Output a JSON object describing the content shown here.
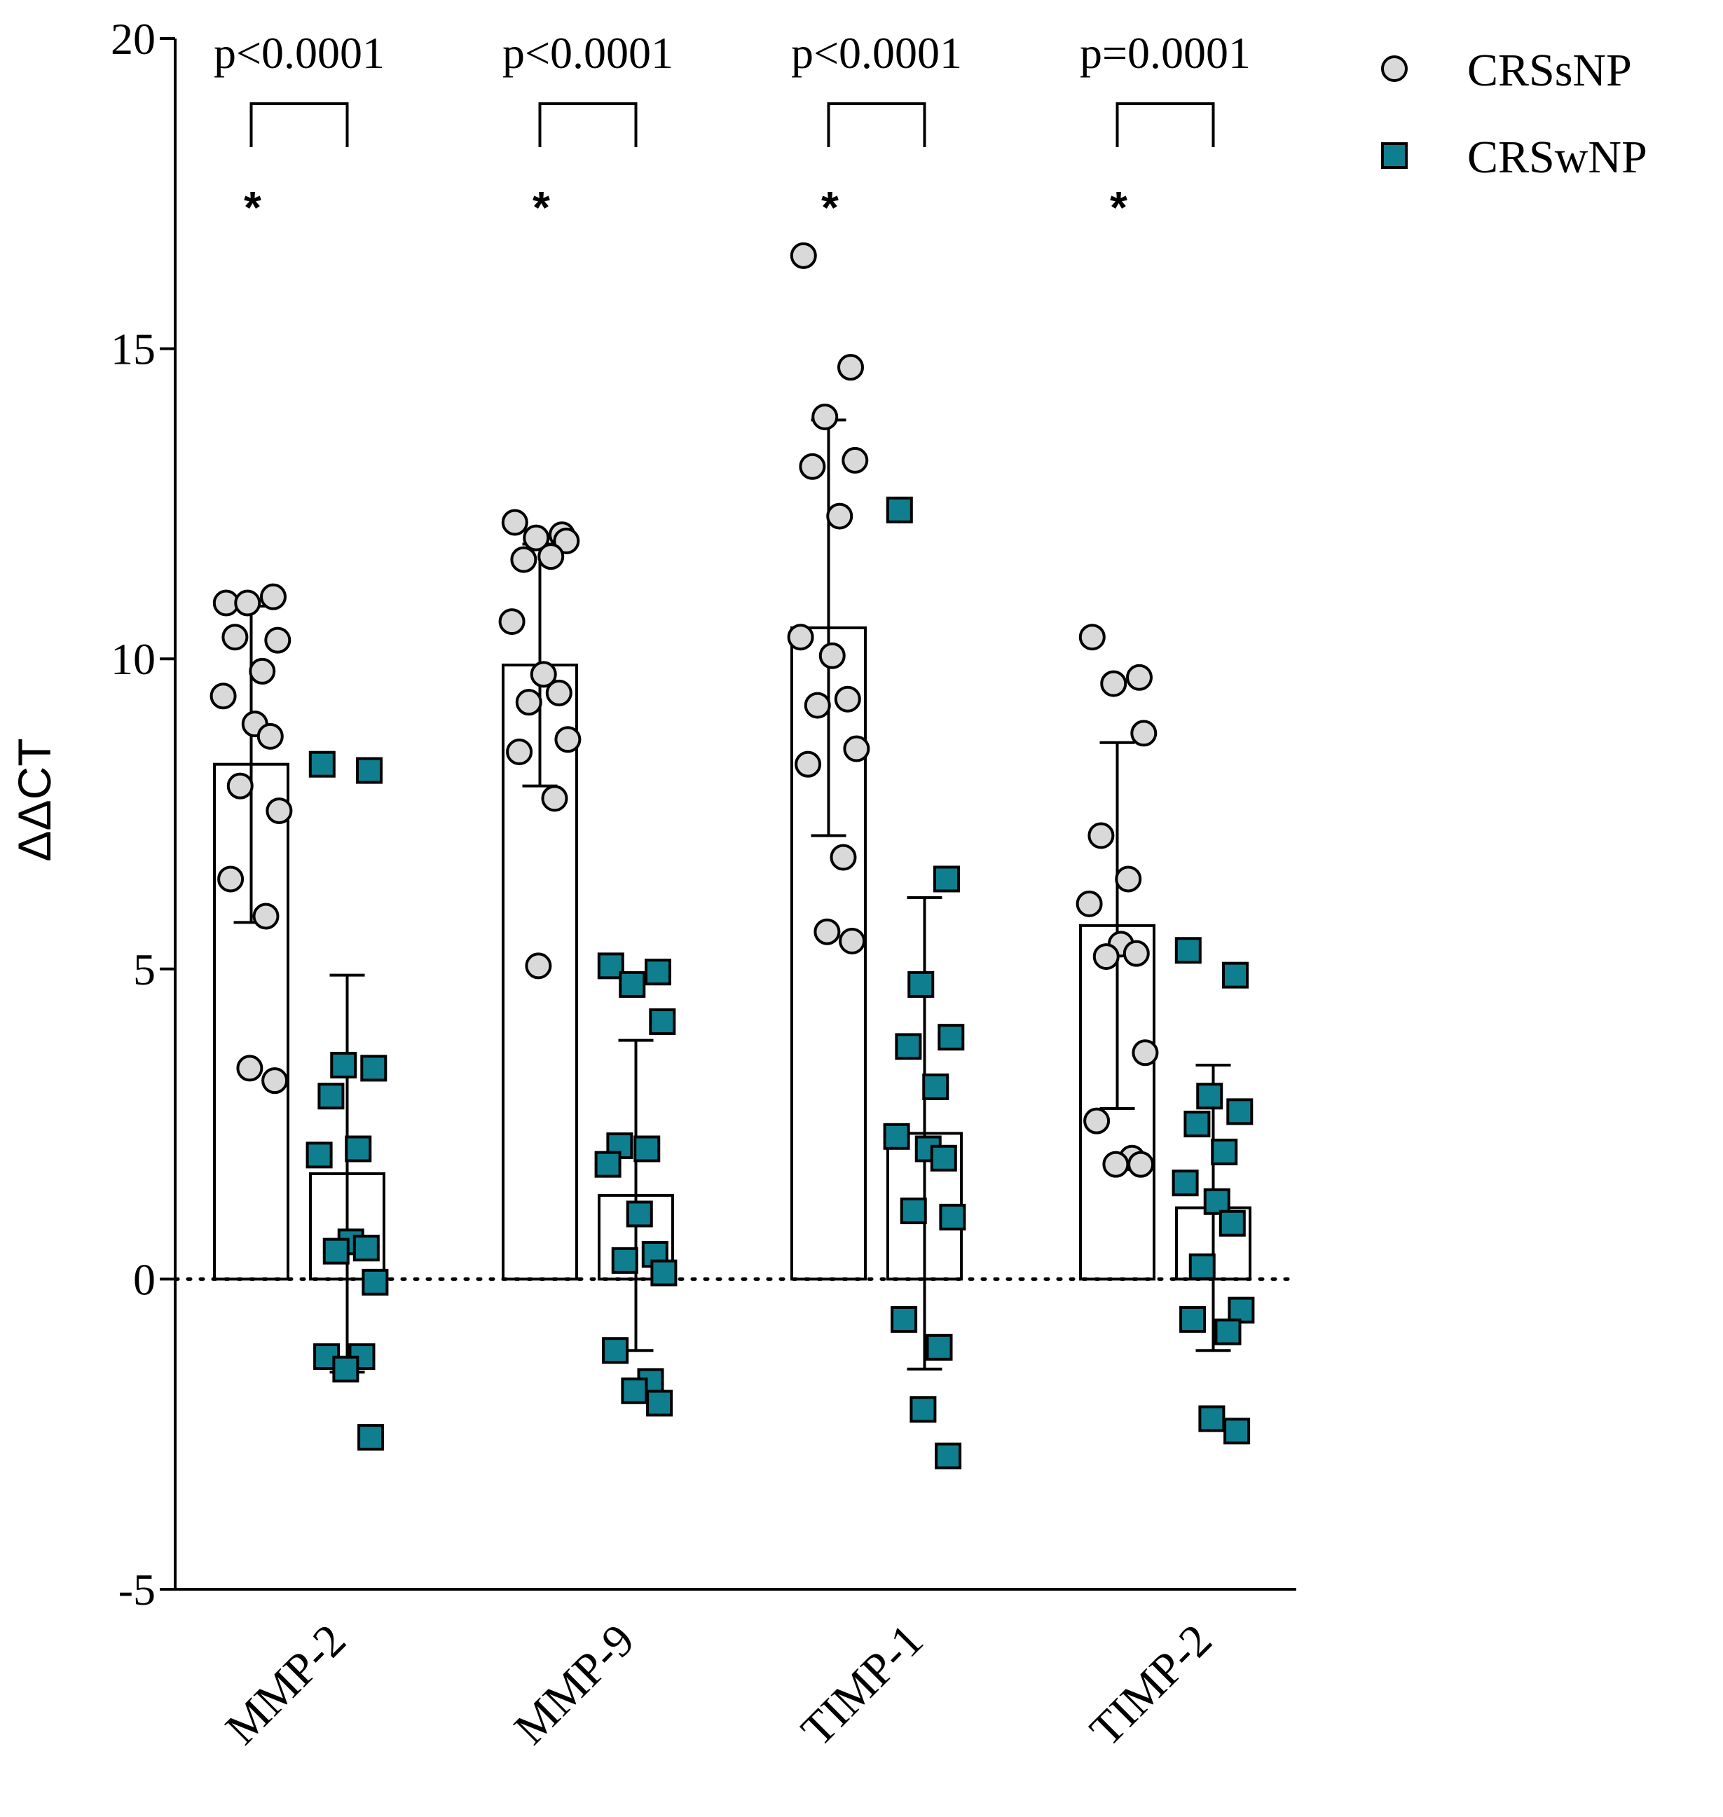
{
  "chart_data": {
    "type": "bar",
    "ylabel": "ΔΔCT",
    "xlabel": "",
    "ylim": [
      -5,
      20
    ],
    "yticks": [
      -5,
      0,
      5,
      10,
      15,
      20
    ],
    "ytick_labels": [
      "-5",
      "0",
      "5",
      "10",
      "15",
      "20"
    ],
    "zero_reference_line": "dotted",
    "legend_position": "top-right",
    "categories": [
      "MMP-2",
      "MMP-9",
      "TIMP-1",
      "TIMP-2"
    ],
    "series": [
      {
        "name": "CRSsNP",
        "marker": "circle",
        "color": "#d9d9d9",
        "means": [
          8.3,
          9.9,
          10.5,
          5.7
        ],
        "sd": [
          2.55,
          1.95,
          3.35,
          2.95
        ],
        "points": [
          [
            10.9,
            11.0,
            10.9,
            10.3,
            10.35,
            9.8,
            9.4,
            8.95,
            8.75,
            7.95,
            7.55,
            6.45,
            5.85,
            3.4,
            3.2
          ],
          [
            12.2,
            12.0,
            11.95,
            11.9,
            11.6,
            11.65,
            10.6,
            9.75,
            9.45,
            9.3,
            8.7,
            8.5,
            7.75,
            5.05
          ],
          [
            16.5,
            14.7,
            13.9,
            13.2,
            13.1,
            12.3,
            10.35,
            10.05,
            9.35,
            9.25,
            8.55,
            8.3,
            6.8,
            5.6,
            5.45
          ],
          [
            10.35,
            9.7,
            9.6,
            8.8,
            7.15,
            6.45,
            6.05,
            5.4,
            5.25,
            5.2,
            3.65,
            2.55,
            1.95,
            1.85,
            1.85
          ]
        ]
      },
      {
        "name": "CRSwNP",
        "marker": "square",
        "color": "#0f7f8f",
        "means": [
          1.7,
          1.35,
          2.35,
          1.15
        ],
        "sd": [
          3.2,
          2.5,
          3.8,
          2.3
        ],
        "points": [
          [
            8.3,
            8.2,
            3.45,
            3.4,
            2.95,
            2.1,
            2.0,
            0.6,
            0.5,
            0.45,
            -0.05,
            -1.25,
            -1.25,
            -1.45,
            -2.55
          ],
          [
            5.05,
            4.95,
            4.75,
            4.15,
            2.15,
            2.1,
            1.85,
            1.05,
            0.4,
            0.3,
            0.1,
            -1.15,
            -1.65,
            -1.8,
            -2.0
          ],
          [
            12.4,
            6.45,
            4.75,
            3.9,
            3.75,
            3.1,
            2.3,
            2.1,
            1.95,
            1.1,
            1.0,
            -0.65,
            -1.1,
            -2.1,
            -2.85
          ],
          [
            5.3,
            4.9,
            2.95,
            2.7,
            2.5,
            2.05,
            1.55,
            1.25,
            0.9,
            0.2,
            -0.5,
            -0.65,
            -0.85,
            -2.25,
            -2.45
          ]
        ]
      }
    ],
    "annotations": [
      {
        "category": "MMP-2",
        "p_text": "p<0.0001",
        "star": "*"
      },
      {
        "category": "MMP-9",
        "p_text": "p<0.0001",
        "star": "*"
      },
      {
        "category": "TIMP-1",
        "p_text": "p<0.0001",
        "star": "*"
      },
      {
        "category": "TIMP-2",
        "p_text": "p=0.0001",
        "star": "*"
      }
    ]
  }
}
